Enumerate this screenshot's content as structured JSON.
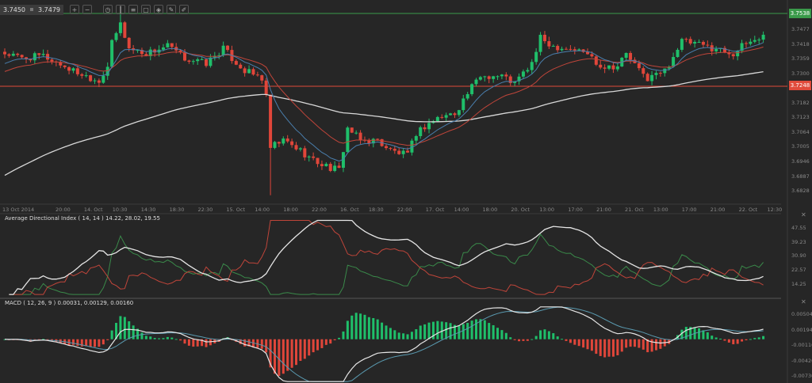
{
  "toolbar": {
    "bid": "3.7450",
    "ask": "3.7479",
    "icons": [
      "zoom-in-icon",
      "zoom-out-icon",
      "timeframe-icon",
      "chart-type-icon",
      "indicators-icon",
      "template-icon",
      "tag-icon",
      "edit-icon",
      "draw-icon"
    ]
  },
  "chart_data": [
    {
      "type": "candlestick",
      "title": "",
      "price_ticks": [
        "3.7477",
        "3.7418",
        "3.7359",
        "3.7300",
        "3.7182",
        "3.7123",
        "3.7064",
        "3.7005",
        "3.6946",
        "3.6887",
        "3.6828"
      ],
      "current_price": {
        "label": "3.7538",
        "color": "#3a9a4a"
      },
      "horizontal_line": {
        "label": "3.7248",
        "value": 3.7248,
        "color": "#e04b3b"
      },
      "ylim": [
        3.68,
        3.7545
      ],
      "time_labels": [
        "13 Oct 2014",
        "20:00",
        "14. Oct",
        "10:30",
        "14:30",
        "18:30",
        "22:30",
        "15. Oct",
        "14:00",
        "18:00",
        "22:00",
        "16. Oct",
        "18:30",
        "22:00",
        "17. Oct",
        "14:00",
        "18:00",
        "20. Oct",
        "13:00",
        "17:00",
        "21:00",
        "21. Oct",
        "13:00",
        "17:00",
        "21:00",
        "22. Oct",
        "12:30"
      ],
      "candle_count": 178,
      "close_path": [
        [
          0,
          3.738
        ],
        [
          4,
          3.736
        ],
        [
          9,
          3.737
        ],
        [
          16,
          3.731
        ],
        [
          22,
          3.727
        ],
        [
          24,
          3.733
        ],
        [
          25,
          3.742
        ],
        [
          27,
          3.75
        ],
        [
          29,
          3.74
        ],
        [
          33,
          3.738
        ],
        [
          38,
          3.741
        ],
        [
          42,
          3.736
        ],
        [
          47,
          3.734
        ],
        [
          51,
          3.74
        ],
        [
          53,
          3.736
        ],
        [
          56,
          3.731
        ],
        [
          60,
          3.728
        ],
        [
          61,
          3.72
        ],
        [
          62,
          3.7
        ],
        [
          65,
          3.703
        ],
        [
          69,
          3.699
        ],
        [
          72,
          3.695
        ],
        [
          76,
          3.692
        ],
        [
          78,
          3.691
        ],
        [
          80,
          3.708
        ],
        [
          83,
          3.703
        ],
        [
          87,
          3.703
        ],
        [
          90,
          3.699
        ],
        [
          94,
          3.697
        ],
        [
          96,
          3.706
        ],
        [
          99,
          3.71
        ],
        [
          101,
          3.712
        ],
        [
          105,
          3.714
        ],
        [
          108,
          3.722
        ],
        [
          111,
          3.729
        ],
        [
          116,
          3.729
        ],
        [
          119,
          3.726
        ],
        [
          123,
          3.734
        ],
        [
          125,
          3.744
        ],
        [
          128,
          3.741
        ],
        [
          132,
          3.74
        ],
        [
          136,
          3.738
        ],
        [
          139,
          3.733
        ],
        [
          143,
          3.733
        ],
        [
          145,
          3.738
        ],
        [
          148,
          3.731
        ],
        [
          150,
          3.728
        ],
        [
          154,
          3.731
        ],
        [
          156,
          3.737
        ],
        [
          158,
          3.743
        ],
        [
          163,
          3.741
        ],
        [
          166,
          3.74
        ],
        [
          170,
          3.738
        ],
        [
          173,
          3.742
        ],
        [
          177,
          3.745
        ]
      ],
      "colors": {
        "up": "#1fbf6a",
        "down": "#e0463a",
        "ma_fast": "#4a7fae",
        "ma_slow": "#c0453a",
        "ma_long": "#d8d8d8"
      }
    },
    {
      "type": "line",
      "title": "Average Directional Index ( 14, 14 ) 14.22, 28.02, 19.55",
      "ticks": [
        "47.55",
        "39.23",
        "30.90",
        "22.57",
        "14.25"
      ],
      "ylim": [
        10,
        52
      ],
      "series_colors": {
        "adx": "#e6e6e6",
        "plus_di": "#3a8a4a",
        "minus_di": "#c0453a"
      }
    },
    {
      "type": "bar+line",
      "title": "MACD ( 12, 26, 9 ) 0.00031, 0.00129, 0.00160",
      "ticks": [
        "0.00504",
        "0.00194",
        "-0.00116",
        "-0.00426",
        "-0.00736"
      ],
      "ylim": [
        -0.0085,
        0.0065
      ],
      "series_colors": {
        "macd": "#e6e6e6",
        "signal": "#5a9ab0",
        "hist_up": "#1fbf6a",
        "hist_down": "#e0463a"
      }
    }
  ]
}
